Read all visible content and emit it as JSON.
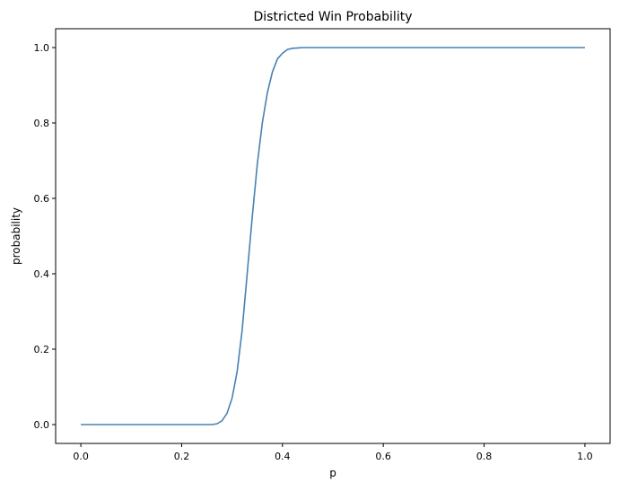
{
  "chart_data": {
    "type": "line",
    "title": "Districted Win Probability",
    "xlabel": "p",
    "ylabel": "probability",
    "xlim": [
      -0.05,
      1.05
    ],
    "ylim": [
      -0.05,
      1.05
    ],
    "x_ticks": [
      0.0,
      0.2,
      0.4,
      0.6,
      0.8,
      1.0
    ],
    "x_tick_labels": [
      "0.0",
      "0.2",
      "0.4",
      "0.6",
      "0.8",
      "1.0"
    ],
    "y_ticks": [
      0.0,
      0.2,
      0.4,
      0.6,
      0.8,
      1.0
    ],
    "y_tick_labels": [
      "0.0",
      "0.2",
      "0.4",
      "0.6",
      "0.8",
      "1.0"
    ],
    "grid": false,
    "legend": "none",
    "line_color": "#4682b4",
    "series": [
      {
        "x": [
          0.0,
          0.05,
          0.1,
          0.15,
          0.2,
          0.25,
          0.26,
          0.27,
          0.28,
          0.29,
          0.3,
          0.31,
          0.32,
          0.33,
          0.34,
          0.35,
          0.36,
          0.37,
          0.38,
          0.39,
          0.4,
          0.41,
          0.42,
          0.43,
          0.44,
          0.45,
          0.46,
          0.48,
          0.5,
          0.6,
          0.7,
          0.8,
          0.9,
          1.0
        ],
        "y": [
          0.0,
          0.0,
          0.0,
          0.0,
          0.0,
          0.0,
          0.0,
          0.002,
          0.01,
          0.03,
          0.07,
          0.14,
          0.25,
          0.4,
          0.55,
          0.69,
          0.8,
          0.88,
          0.935,
          0.97,
          0.985,
          0.995,
          0.998,
          0.999,
          1.0,
          1.0,
          1.0,
          1.0,
          1.0,
          1.0,
          1.0,
          1.0,
          1.0,
          1.0
        ]
      }
    ]
  }
}
